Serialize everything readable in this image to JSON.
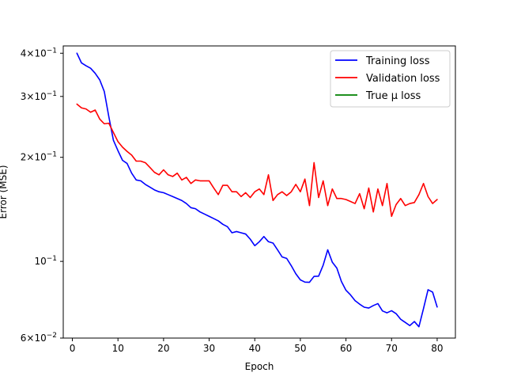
{
  "chart_data": {
    "type": "line",
    "xlabel": "Epoch",
    "ylabel": "Error (MSE)",
    "xlim": [
      -2,
      84
    ],
    "ylim": [
      0.06,
      0.42
    ],
    "y_scale": "log",
    "grid": false,
    "legend_position": "top-right",
    "x_ticks": [
      {
        "value": 0,
        "label": "0"
      },
      {
        "value": 10,
        "label": "10"
      },
      {
        "value": 20,
        "label": "20"
      },
      {
        "value": 30,
        "label": "30"
      },
      {
        "value": 40,
        "label": "40"
      },
      {
        "value": 50,
        "label": "50"
      },
      {
        "value": 60,
        "label": "60"
      },
      {
        "value": 70,
        "label": "70"
      },
      {
        "value": 80,
        "label": "80"
      }
    ],
    "y_ticks": [
      {
        "value": 0.4,
        "base": "4×10",
        "exp": "−1"
      },
      {
        "value": 0.3,
        "base": "3×10",
        "exp": "−1"
      },
      {
        "value": 0.2,
        "base": "2×10",
        "exp": "−1"
      },
      {
        "value": 0.1,
        "base": "10",
        "exp": "−1"
      },
      {
        "value": 0.06,
        "base": "6×10",
        "exp": "−2"
      }
    ],
    "series": [
      {
        "name": "Training loss",
        "color": "#0000ff",
        "x": [
          1,
          2,
          3,
          4,
          5,
          6,
          7,
          8,
          9,
          10,
          11,
          12,
          13,
          14,
          15,
          16,
          17,
          18,
          19,
          20,
          21,
          22,
          23,
          24,
          25,
          26,
          27,
          28,
          29,
          30,
          31,
          32,
          33,
          34,
          35,
          36,
          37,
          38,
          39,
          40,
          41,
          42,
          43,
          44,
          45,
          46,
          47,
          48,
          49,
          50,
          51,
          52,
          53,
          54,
          55,
          56,
          57,
          58,
          59,
          60,
          61,
          62,
          63,
          64,
          65,
          66,
          67,
          68,
          69,
          70,
          71,
          72,
          73,
          74,
          75,
          76,
          77,
          78,
          79,
          80
        ],
        "y": [
          0.4,
          0.375,
          0.368,
          0.362,
          0.35,
          0.335,
          0.31,
          0.262,
          0.224,
          0.209,
          0.196,
          0.192,
          0.18,
          0.172,
          0.171,
          0.167,
          0.164,
          0.161,
          0.159,
          0.158,
          0.156,
          0.154,
          0.152,
          0.15,
          0.147,
          0.143,
          0.142,
          0.139,
          0.137,
          0.135,
          0.133,
          0.131,
          0.128,
          0.126,
          0.121,
          0.122,
          0.121,
          0.12,
          0.116,
          0.111,
          0.114,
          0.118,
          0.114,
          0.113,
          0.108,
          0.103,
          0.102,
          0.0972,
          0.0921,
          0.0884,
          0.0871,
          0.087,
          0.0905,
          0.0906,
          0.0975,
          0.108,
          0.0995,
          0.0956,
          0.0875,
          0.0825,
          0.08,
          0.077,
          0.0752,
          0.0737,
          0.0733,
          0.0745,
          0.0755,
          0.0719,
          0.071,
          0.072,
          0.0706,
          0.068,
          0.0666,
          0.0652,
          0.067,
          0.0647,
          0.073,
          0.0828,
          0.0815,
          0.0738
        ]
      },
      {
        "name": "Validation loss",
        "color": "#ff0000",
        "x": [
          1,
          2,
          3,
          4,
          5,
          6,
          7,
          8,
          9,
          10,
          11,
          12,
          13,
          14,
          15,
          16,
          17,
          18,
          19,
          20,
          21,
          22,
          23,
          24,
          25,
          26,
          27,
          28,
          29,
          30,
          31,
          32,
          33,
          34,
          35,
          36,
          37,
          38,
          39,
          40,
          41,
          42,
          43,
          44,
          45,
          46,
          47,
          48,
          49,
          50,
          51,
          52,
          53,
          54,
          55,
          56,
          57,
          58,
          59,
          60,
          61,
          62,
          63,
          64,
          65,
          66,
          67,
          68,
          69,
          70,
          71,
          72,
          73,
          74,
          75,
          76,
          77,
          78,
          79,
          80
        ],
        "y": [
          0.285,
          0.278,
          0.276,
          0.27,
          0.274,
          0.258,
          0.25,
          0.251,
          0.236,
          0.222,
          0.214,
          0.208,
          0.203,
          0.195,
          0.195,
          0.193,
          0.187,
          0.181,
          0.178,
          0.184,
          0.178,
          0.176,
          0.18,
          0.172,
          0.175,
          0.168,
          0.172,
          0.171,
          0.171,
          0.171,
          0.163,
          0.156,
          0.166,
          0.166,
          0.159,
          0.159,
          0.154,
          0.158,
          0.153,
          0.159,
          0.162,
          0.156,
          0.178,
          0.15,
          0.156,
          0.159,
          0.155,
          0.159,
          0.167,
          0.159,
          0.173,
          0.145,
          0.193,
          0.153,
          0.171,
          0.145,
          0.162,
          0.152,
          0.152,
          0.151,
          0.149,
          0.147,
          0.157,
          0.142,
          0.163,
          0.139,
          0.162,
          0.145,
          0.168,
          0.135,
          0.146,
          0.152,
          0.145,
          0.147,
          0.148,
          0.156,
          0.168,
          0.154,
          0.147,
          0.151
        ]
      },
      {
        "name": "True μ loss",
        "color": "#008000",
        "x": [],
        "y": []
      }
    ]
  }
}
